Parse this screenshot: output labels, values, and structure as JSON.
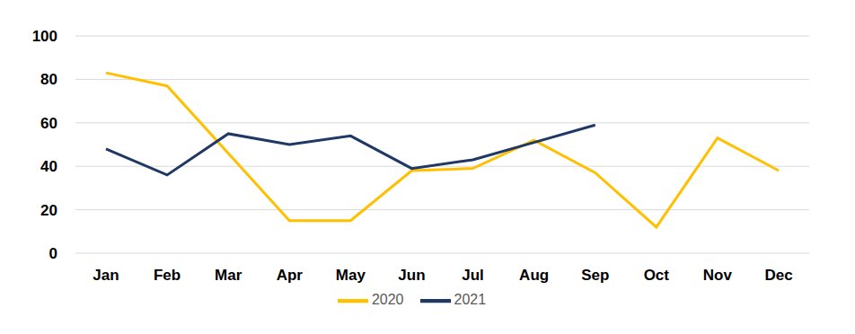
{
  "chart_data": {
    "type": "line",
    "categories": [
      "Jan",
      "Feb",
      "Mar",
      "Apr",
      "May",
      "Jun",
      "Jul",
      "Aug",
      "Sep",
      "Oct",
      "Nov",
      "Dec"
    ],
    "series": [
      {
        "name": "2020",
        "color": "#FFC000",
        "values": [
          83,
          77,
          46,
          15,
          15,
          38,
          39,
          52,
          37,
          12,
          53,
          38
        ]
      },
      {
        "name": "2021",
        "color": "#1F3864",
        "values": [
          48,
          36,
          55,
          50,
          54,
          39,
          43,
          51,
          59,
          null,
          null,
          null
        ]
      }
    ],
    "ylim": [
      0,
      100
    ],
    "yticks": [
      0,
      20,
      40,
      60,
      80,
      100
    ],
    "grid": true,
    "legend": "bottom"
  }
}
